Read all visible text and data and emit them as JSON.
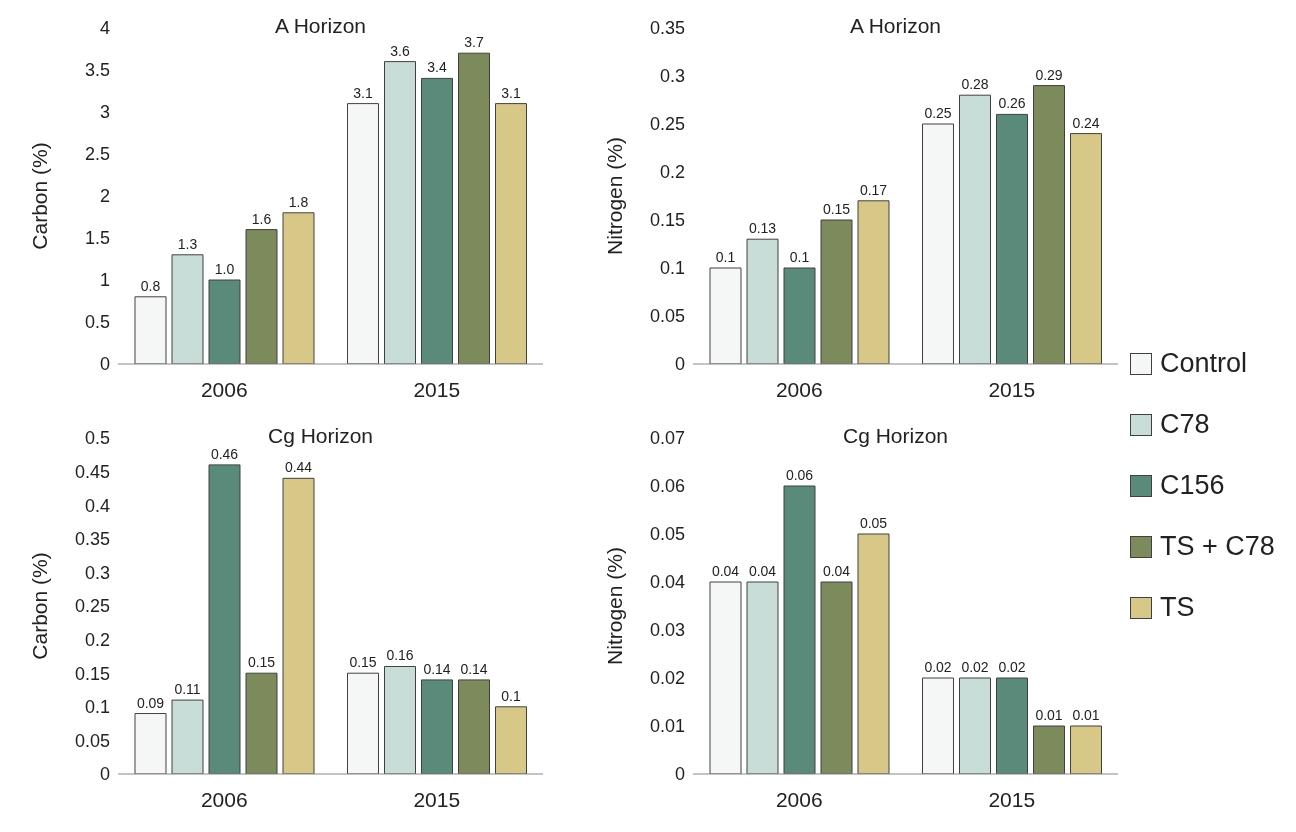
{
  "chart_data": [
    {
      "type": "bar",
      "title": "A Horizon",
      "ylabel": "Carbon (%)",
      "categories": [
        "2006",
        "2015"
      ],
      "ylim": [
        0,
        4
      ],
      "yticks": [
        0,
        0.5,
        1,
        1.5,
        2,
        2.5,
        3,
        3.5,
        4
      ],
      "legend": "right",
      "series": [
        {
          "name": "Control",
          "color": "#f4f7f6",
          "values": [
            0.8,
            3.1
          ],
          "value_labels": [
            "0.8",
            "3.1"
          ]
        },
        {
          "name": "C78",
          "color": "#c8ddd8",
          "values": [
            1.3,
            3.6
          ],
          "value_labels": [
            "1.3",
            "3.6"
          ]
        },
        {
          "name": "C156",
          "color": "#5a8a7a",
          "values": [
            1.0,
            3.4
          ],
          "value_labels": [
            "1.0",
            "3.4"
          ]
        },
        {
          "name": "TS + C78",
          "color": "#7c8a5c",
          "values": [
            1.6,
            3.7
          ],
          "value_labels": [
            "1.6",
            "3.7"
          ]
        },
        {
          "name": "TS",
          "color": "#d8c888",
          "values": [
            1.8,
            3.1
          ],
          "value_labels": [
            "1.8",
            "3.1"
          ]
        }
      ]
    },
    {
      "type": "bar",
      "title": "A Horizon",
      "ylabel": "Nitrogen (%)",
      "categories": [
        "2006",
        "2015"
      ],
      "ylim": [
        0,
        0.35
      ],
      "yticks": [
        0,
        0.05,
        0.1,
        0.15,
        0.2,
        0.25,
        0.3,
        0.35
      ],
      "data_labels": true,
      "series": [
        {
          "color": "#f4f7f6",
          "values": [
            0.1,
            0.25
          ]
        },
        {
          "color": "#c8ddd8",
          "values": [
            0.13,
            0.28
          ]
        },
        {
          "color": "#5a8a7a",
          "values": [
            0.1,
            0.26
          ]
        },
        {
          "color": "#7c8a5c",
          "values": [
            0.15,
            0.29
          ]
        },
        {
          "color": "#d8c888",
          "values": [
            0.17,
            0.24
          ]
        }
      ]
    },
    {
      "type": "bar",
      "title": "Cg Horizon",
      "ylabel": "Carbon (%)",
      "categories": [
        "2006",
        "2015"
      ],
      "ylim": [
        0,
        0.5
      ],
      "yticks": [
        0,
        0.05,
        0.1,
        0.15,
        0.2,
        0.25,
        0.3,
        0.35,
        0.4,
        0.45,
        0.5
      ],
      "data_labels": true,
      "series": [
        {
          "color": "#f4f7f6",
          "values": [
            0.09,
            0.15
          ]
        },
        {
          "color": "#c8ddd8",
          "values": [
            0.11,
            0.16
          ]
        },
        {
          "color": "#5a8a7a",
          "values": [
            0.46,
            0.14
          ]
        },
        {
          "color": "#7c8a5c",
          "values": [
            0.15,
            0.14
          ]
        },
        {
          "color": "#d8c888",
          "values": [
            0.44,
            0.1
          ]
        }
      ]
    },
    {
      "type": "bar",
      "title": "Cg Horizon",
      "ylabel": "Nitrogen (%)",
      "categories": [
        "2006",
        "2015"
      ],
      "ylim": [
        0,
        0.07
      ],
      "yticks": [
        0,
        0.01,
        0.02,
        0.03,
        0.04,
        0.05,
        0.06,
        0.07
      ],
      "data_labels": true,
      "series": [
        {
          "color": "#f4f7f6",
          "values": [
            0.04,
            0.02
          ]
        },
        {
          "color": "#c8ddd8",
          "values": [
            0.04,
            0.02
          ]
        },
        {
          "color": "#5a8a7a",
          "values": [
            0.06,
            0.02
          ]
        },
        {
          "color": "#7c8a5c",
          "values": [
            0.04,
            0.01
          ]
        },
        {
          "color": "#d8c888",
          "values": [
            0.05,
            0.01
          ]
        }
      ]
    }
  ]
}
